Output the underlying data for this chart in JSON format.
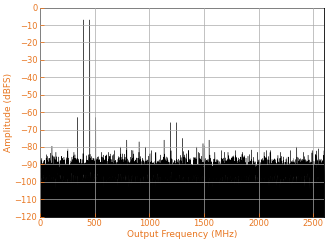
{
  "title": "",
  "xlabel": "Output Frequency (MHz)",
  "ylabel": "Amplitude (dBFS)",
  "xlim": [
    0,
    2600
  ],
  "ylim": [
    -120,
    0
  ],
  "yticks": [
    0,
    -10,
    -20,
    -30,
    -40,
    -50,
    -60,
    -70,
    -80,
    -90,
    -100,
    -110,
    -120
  ],
  "xticks": [
    0,
    500,
    1000,
    1500,
    2000,
    2500
  ],
  "noise_floor": -93,
  "noise_std": 3.5,
  "label_color": "#E87722",
  "tick_color": "#E87722",
  "axis_color": "#000000",
  "background_color": "#ffffff",
  "tone1_if_mhz": 397,
  "tone2_if_mhz": 453,
  "seed": 42
}
